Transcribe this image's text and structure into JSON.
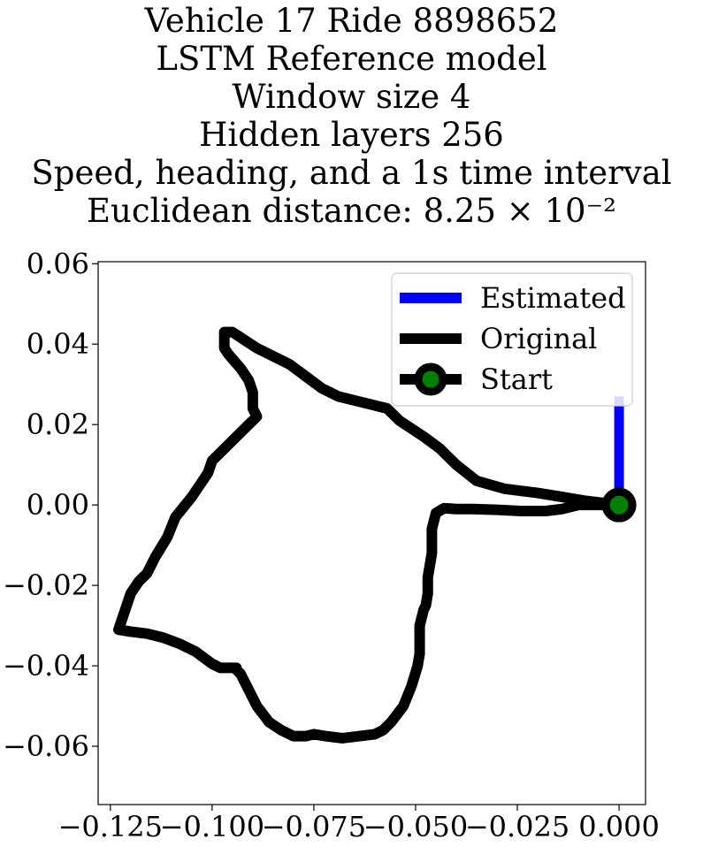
{
  "title_lines": [
    "Vehicle 17 Ride 8898652",
    "LSTM Reference model",
    "Window size 4",
    "Hidden layers 256",
    "Speed, heading, and a 1s time interval",
    "Euclidean distance: 8.25 × 10⁻²"
  ],
  "chart_data": {
    "type": "line",
    "title": "Vehicle 17 Ride 8898652 / LSTM Reference model / Window size 4 / Hidden layers 256 / Speed, heading, and a 1s time interval / Euclidean distance: 8.25×10^-2",
    "xlabel": "",
    "ylabel": "",
    "xlim": [
      -0.128,
      0.0065
    ],
    "ylim": [
      -0.0745,
      0.0605
    ],
    "xticks": [
      -0.125,
      -0.1,
      -0.075,
      -0.05,
      -0.025,
      0.0
    ],
    "xtick_labels": [
      "−0.125",
      "−0.100",
      "−0.075",
      "−0.050",
      "−0.025",
      "0.000"
    ],
    "yticks": [
      0.06,
      0.04,
      0.02,
      0.0,
      -0.02,
      -0.04,
      -0.06
    ],
    "ytick_labels": [
      "0.06",
      "0.04",
      "0.02",
      "0.00",
      "−0.02",
      "−0.04",
      "−0.06"
    ],
    "grid": false,
    "legend_position": "top-right",
    "legend": [
      "Estimated",
      "Original",
      "Start"
    ],
    "series": [
      {
        "name": "Original",
        "color": "#000000",
        "x": [
          0.0,
          -0.006,
          -0.01,
          -0.014,
          -0.018,
          -0.024,
          -0.03,
          -0.036,
          -0.04,
          -0.043,
          -0.045,
          -0.046,
          -0.046,
          -0.047,
          -0.047,
          -0.0475,
          -0.048,
          -0.049,
          -0.049,
          -0.0495,
          -0.051,
          -0.053,
          -0.056,
          -0.058,
          -0.06,
          -0.064,
          -0.068,
          -0.072,
          -0.075,
          -0.077,
          -0.08,
          -0.083,
          -0.086,
          -0.089,
          -0.091,
          -0.093,
          -0.094,
          -0.094,
          -0.096,
          -0.098,
          -0.1,
          -0.102,
          -0.104,
          -0.106,
          -0.108,
          -0.112,
          -0.116,
          -0.12,
          -0.123,
          -0.121,
          -0.12,
          -0.118,
          -0.116,
          -0.114,
          -0.111,
          -0.109,
          -0.107,
          -0.105,
          -0.103,
          -0.101,
          -0.1,
          -0.098,
          -0.095,
          -0.091,
          -0.089,
          -0.09,
          -0.09,
          -0.091,
          -0.093,
          -0.096,
          -0.097,
          -0.097,
          -0.095,
          -0.092,
          -0.089,
          -0.085,
          -0.081,
          -0.077,
          -0.073,
          -0.069,
          -0.065,
          -0.061,
          -0.057,
          -0.054,
          -0.051,
          -0.048,
          -0.044,
          -0.04,
          -0.035,
          -0.028,
          -0.02,
          -0.014,
          -0.008,
          -0.004,
          0.0
        ],
        "y": [
          0.0,
          0.0,
          0.0,
          -0.001,
          -0.0015,
          -0.0015,
          -0.0012,
          -0.001,
          -0.001,
          -0.0008,
          -0.002,
          -0.006,
          -0.012,
          -0.018,
          -0.022,
          -0.025,
          -0.026,
          -0.03,
          -0.037,
          -0.04,
          -0.045,
          -0.05,
          -0.054,
          -0.056,
          -0.057,
          -0.0575,
          -0.058,
          -0.0575,
          -0.057,
          -0.0575,
          -0.0575,
          -0.056,
          -0.054,
          -0.05,
          -0.046,
          -0.042,
          -0.041,
          -0.0405,
          -0.0405,
          -0.0405,
          -0.0395,
          -0.038,
          -0.0365,
          -0.0355,
          -0.0345,
          -0.033,
          -0.032,
          -0.0315,
          -0.031,
          -0.025,
          -0.022,
          -0.019,
          -0.017,
          -0.013,
          -0.008,
          -0.003,
          -0.0005,
          0.002,
          0.005,
          0.008,
          0.011,
          0.013,
          0.016,
          0.02,
          0.022,
          0.024,
          0.028,
          0.031,
          0.034,
          0.0375,
          0.039,
          0.043,
          0.043,
          0.041,
          0.039,
          0.037,
          0.035,
          0.032,
          0.029,
          0.027,
          0.026,
          0.025,
          0.024,
          0.021,
          0.019,
          0.017,
          0.014,
          0.01,
          0.006,
          0.004,
          0.003,
          0.002,
          0.001,
          0.0005,
          0.0
        ]
      },
      {
        "name": "Estimated",
        "color": "#0000ff",
        "x": [
          0.0,
          0.0
        ],
        "y": [
          0.0,
          0.027
        ]
      },
      {
        "name": "Start",
        "color": "#000000",
        "marker_color": "#008000",
        "x": [
          0.0
        ],
        "y": [
          0.0
        ]
      }
    ]
  }
}
